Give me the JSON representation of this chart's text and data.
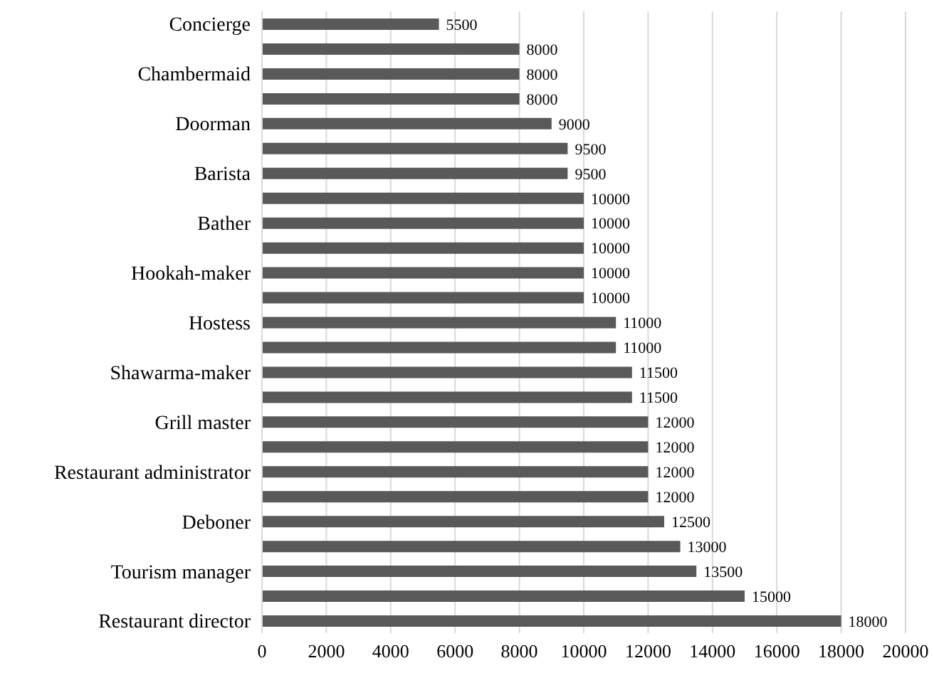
{
  "chart_data": {
    "type": "bar",
    "orientation": "horizontal",
    "categories": [
      "Concierge",
      null,
      "Chambermaid",
      null,
      "Doorman",
      null,
      "Barista",
      null,
      "Bather",
      null,
      "Hookah-maker",
      null,
      "Hostess",
      null,
      "Shawarma-maker",
      null,
      "Grill master",
      null,
      "Restaurant administrator",
      null,
      "Deboner",
      null,
      "Tourism manager",
      null,
      "Restaurant director"
    ],
    "values": [
      5500,
      8000,
      8000,
      8000,
      9000,
      9500,
      9500,
      10000,
      10000,
      10000,
      10000,
      10000,
      11000,
      11000,
      11500,
      11500,
      12000,
      12000,
      12000,
      12000,
      12500,
      13000,
      13500,
      15000,
      18000
    ],
    "color": "#595959",
    "xlim": [
      0,
      20000
    ],
    "xticks": [
      0,
      2000,
      4000,
      6000,
      8000,
      10000,
      12000,
      14000,
      16000,
      18000,
      20000
    ],
    "grid": "x",
    "data_labels": true
  }
}
